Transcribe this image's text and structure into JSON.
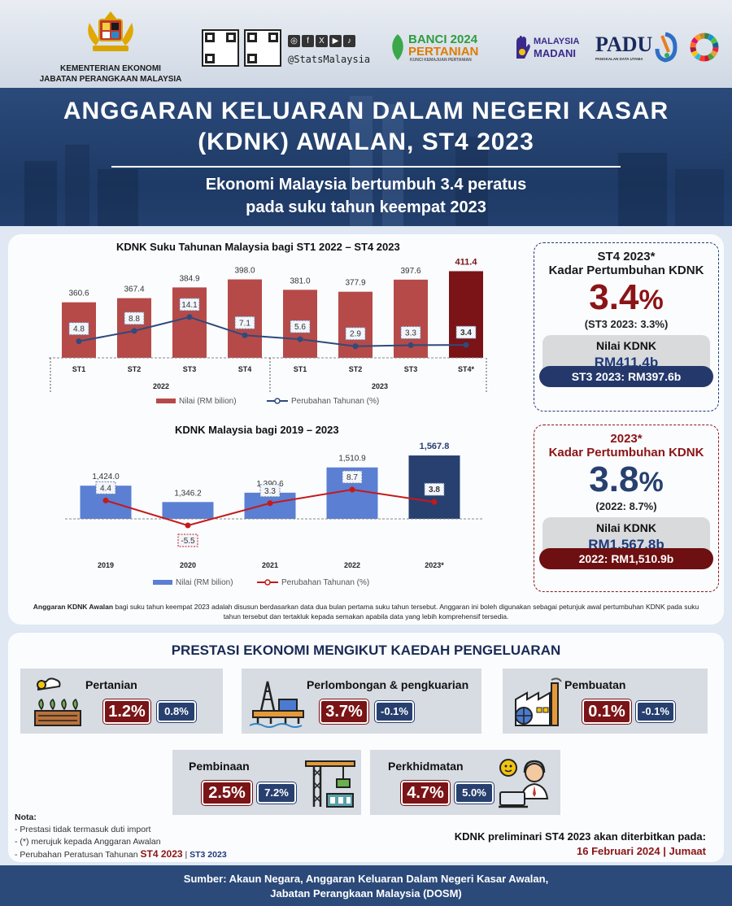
{
  "header": {
    "agency_line1": "KEMENTERIAN EKONOMI",
    "agency_line2": "JABATAN PERANGKAAN MALAYSIA",
    "social_handle": "@StatsMalaysia",
    "social_icons": [
      "instagram-icon",
      "facebook-icon",
      "x-icon",
      "youtube-icon",
      "tiktok-icon"
    ],
    "logo_banci_line1": "BANCI 2024",
    "logo_banci_line2": "PERTANIAN",
    "logo_banci_tag": "KUNCI KEMAJUAN PERTANIAN",
    "logo_madani_line1": "MALAYSIA",
    "logo_madani_line2": "MADANI",
    "logo_padu": "PADU",
    "logo_padu_tag": "PANGKALAN DATA UTAMA"
  },
  "banner": {
    "title_line1": "ANGGARAN KELUARAN DALAM NEGERI KASAR",
    "title_line2": "(KDNK) AWALAN, ST4 2023",
    "subtitle_line1": "Ekonomi Malaysia  bertumbuh 3.4 peratus",
    "subtitle_line2": "pada suku tahun keempat 2023"
  },
  "chart_data": [
    {
      "type": "bar",
      "title": "KDNK  Suku Tahunan Malaysia bagi ST1 2022 – ST4 2023",
      "categories": [
        "ST1",
        "ST2",
        "ST3",
        "ST4",
        "ST1",
        "ST2",
        "ST3",
        "ST4*"
      ],
      "groups": [
        {
          "label": "2022",
          "count": 4
        },
        {
          "label": "2023",
          "count": 4
        }
      ],
      "series": [
        {
          "name": "Nilai (RM bilion)",
          "type": "bar",
          "values": [
            360.6,
            367.4,
            384.9,
            398.0,
            381.0,
            377.9,
            397.6,
            411.4
          ],
          "labels": [
            "360.6",
            "367.4",
            "384.9",
            "398.0",
            "381.0",
            "377.9",
            "397.6",
            "411.4"
          ]
        },
        {
          "name": "Perubahan Tahunan (%)",
          "type": "line",
          "values": [
            4.8,
            8.8,
            14.1,
            7.1,
            5.6,
            2.9,
            3.3,
            3.4
          ],
          "labels": [
            "4.8",
            "8.8",
            "14.1",
            "7.1",
            "5.6",
            "2.9",
            "3.3",
            "3.4"
          ]
        }
      ],
      "colors": {
        "bar": "#b64a48",
        "bar_highlight": "#7a1416",
        "line": "#2f4a7c"
      }
    },
    {
      "type": "bar",
      "title": "KDNK Malaysia bagi 2019 – 2023",
      "categories": [
        "2019",
        "2020",
        "2021",
        "2022",
        "2023*"
      ],
      "series": [
        {
          "name": "Nilai (RM bilion)",
          "type": "bar",
          "values": [
            1424.0,
            1346.2,
            1390.6,
            1510.9,
            1567.8
          ],
          "labels": [
            "1,424.0",
            "1,346.2",
            "1,390.6",
            "1,510.9",
            "1,567.8"
          ]
        },
        {
          "name": "Perubahan Tahunan (%)",
          "type": "line",
          "values": [
            4.4,
            -5.5,
            3.3,
            8.7,
            3.8
          ],
          "labels": [
            "4.4",
            "-5.5",
            "3.3",
            "8.7",
            "3.8"
          ]
        }
      ],
      "colors": {
        "bar": "#5b7fd3",
        "bar_highlight": "#27406f",
        "line": "#c41a1a"
      }
    }
  ],
  "card_q": {
    "period": "ST4 2023*",
    "label": "Kadar Pertumbuhan KDNK",
    "growth": "3.4",
    "unit": "%",
    "prev": "(ST3 2023: 3.3%)",
    "value_label": "Nilai KDNK",
    "value": "RM411.4b",
    "prev_value": "ST3 2023:  RM397.6b"
  },
  "card_y": {
    "period": "2023*",
    "label": "Kadar Pertumbuhan KDNK",
    "growth": "3.8",
    "unit": "%",
    "prev": "(2022: 8.7%)",
    "value_label": "Nilai KDNK",
    "value": "RM1,567.8b",
    "prev_value": "2022:  RM1,510.9b"
  },
  "footnote": {
    "bold": "Anggaran KDNK Awalan",
    "text": " bagi suku tahun keempat 2023 adalah disusun berdasarkan data dua bulan pertama suku tahun tersebut. Anggaran ini boleh digunakan sebagai petunjuk awal pertumbuhan KDNK pada suku tahun tersebut dan tertakluk kepada semakan apabila data yang lebih komprehensif tersedia."
  },
  "sectors_title": "PRESTASI EKONOMI MENGIKUT KAEDAH PENGELUARAN",
  "sectors": [
    {
      "name": "Pertanian",
      "current": "1.2%",
      "previous": "0.8%"
    },
    {
      "name": "Perlombongan & pengkuarian",
      "current": "3.7%",
      "previous": "-0.1%"
    },
    {
      "name": "Pembuatan",
      "current": "0.1%",
      "previous": "-0.1%"
    },
    {
      "name": "Pembinaan",
      "current": "2.5%",
      "previous": "7.2%"
    },
    {
      "name": "Perkhidmatan",
      "current": "4.7%",
      "previous": "5.0%"
    }
  ],
  "nota": {
    "title": "Nota:",
    "l1": "- Prestasi tidak termasuk duti import",
    "l2": "- (*) merujuk kepada Anggaran Awalan",
    "l3": "- Perubahan Peratusan Tahunan ",
    "l3_red": "ST4 2023",
    "l3_sep": " | ",
    "l3_blue": "ST3 2023"
  },
  "publication": {
    "line1": "KDNK  preliminari ST4 2023 akan diterbitkan pada:",
    "line2": "16 Februari 2024 | Jumaat"
  },
  "footer": {
    "line1": "Sumber: Akaun Negara, Anggaran Keluaran Dalam Negeri Kasar Awalan,",
    "line2": "Jabatan Perangkaan Malaysia (DOSM)"
  }
}
